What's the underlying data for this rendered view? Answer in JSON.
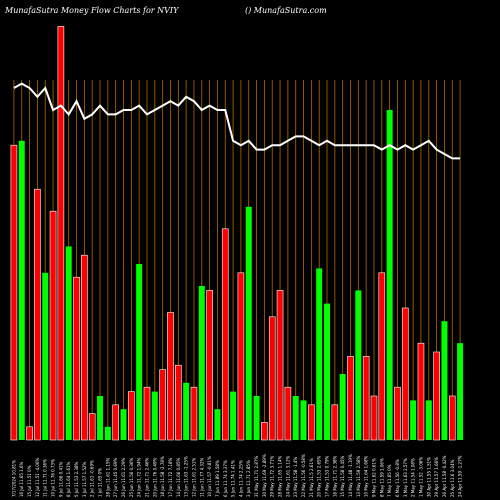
{
  "header": {
    "title_left": "MunafaSutra  Money Flow  Charts for NVIY",
    "title_right": "() MunafaSutra.com"
  },
  "chart_data": {
    "type": "bar",
    "title": "MunafaSutra  Money Flow  Charts for NVIY",
    "ylim": [
      0,
      100
    ],
    "colors": {
      "up": "#00ff00",
      "down": "#ff0000",
      "line": "#ffffff",
      "grid": "#ff9900",
      "background": "#000000"
    },
    "categories": [
      "7/17/2024 10.81%",
      "16 Jul 11.65 1.6%",
      "15 Jul 11.51 0%",
      "12 Jul 11.51 -4.06%",
      "11 Jul 11.71 0.36%",
      "10 Jul 11.76 0.73%",
      "9 Jul 11.66 0.41%",
      "8 Jul 11.64 1.61%",
      "5 Jul 11.53 2.38%",
      "3 Jul 11.57 1.52%",
      "2 Jul 11.61 -0.69%",
      "1 Jul 11.65 0%",
      "28 Jun 11.61 1.15%",
      "27 Jun 11.45 0.69%",
      "26 Jun 11.61 2.29%",
      "25 Jun 11.56 0.36%",
      "24 Jun 11.72 1.94%",
      "21 Jun 11.71 2.46%",
      "20 Jun 11.76 0.49%",
      "18 Jun 11.58 -2.78%",
      "17 Jun 11.72 7.18%",
      "14 Jun 11.66 0.85%",
      "13 Jun 11.63 -1.25%",
      "12 Jun 11.61 2.51%",
      "11 Jun 11.77 4.32%",
      "10 Jun 11.57 -0.81%",
      "7 Jun 11.89 1.58%",
      "6 Jun 11.74 3.37%",
      "5 Jun 11.74 1.41%",
      "4 Jun 11.74 2.25%",
      "3 Jun 11.71 2.85%",
      "31 May 11.71 2.87%",
      "30 May 11.69 -2.89%",
      "29 May 11.72 3.71%",
      "28 May 11.65 1.14%",
      "24 May 11.61 3.12%",
      "23 May 11.58 -1.4%",
      "22 May 11.56 -0.58%",
      "21 May 11.5 2.61%",
      "20 May 11.53 2.65%",
      "17 May 11.53 0.79%",
      "16 May 11.71 2.38%",
      "15 May 11.58 0.45%",
      "14 May 11.48 -1.19%",
      "13 May 11.59 2.58%",
      "10 May 11.64 1.68%",
      "9 May 11.62 0.61%",
      "8 May 11.59 1.06%",
      "7 May 11.65 0%",
      "6 May 11.56 -0.8%",
      "3 May 11.63 2.57%",
      "2 May 11.54 1.08%",
      "1 May 11.52 -3.06%",
      "30 Apr 11.55 1.51%",
      "29 Apr 11.57 1.66%",
      "26 Apr 11.58 -0.42%",
      "25 Apr 11.6 3.04%",
      "24 Apr 11.59 -1.27%"
    ],
    "bar_colors": [
      "red",
      "green",
      "red",
      "red",
      "green",
      "red",
      "red",
      "green",
      "red",
      "red",
      "red",
      "green",
      "green",
      "red",
      "green",
      "red",
      "green",
      "red",
      "green",
      "red",
      "red",
      "red",
      "green",
      "red",
      "green",
      "red",
      "green",
      "red",
      "green",
      "red",
      "green",
      "green",
      "red",
      "red",
      "red",
      "red",
      "green",
      "green",
      "red",
      "green",
      "green",
      "red",
      "green",
      "red",
      "green",
      "red",
      "red",
      "red",
      "green",
      "red",
      "red",
      "green",
      "red",
      "green",
      "red",
      "green",
      "red",
      "green"
    ],
    "series": [
      {
        "values": [
          67,
          68,
          3,
          57,
          38,
          52,
          94,
          44,
          37,
          42,
          6,
          10,
          3,
          8,
          7,
          11,
          40,
          12,
          11,
          16,
          29,
          17,
          13,
          12,
          35,
          34,
          7,
          48,
          11,
          38,
          53,
          10,
          4,
          28,
          34,
          12,
          10,
          9,
          8,
          39,
          31,
          8,
          15,
          19,
          34,
          19,
          10,
          38,
          75,
          12,
          30,
          9,
          22,
          9,
          20,
          27,
          10,
          22
        ]
      },
      {
        "values": [
          80,
          81,
          80,
          78,
          80,
          75,
          76,
          74,
          77,
          73,
          74,
          76,
          74,
          74,
          75,
          75,
          76,
          74,
          75,
          76,
          77,
          76,
          78,
          77,
          75,
          76,
          75,
          75,
          68,
          67,
          68,
          66,
          66,
          67,
          67,
          68,
          69,
          69,
          68,
          67,
          68,
          67,
          67,
          67,
          67,
          67,
          67,
          66,
          67,
          66,
          67,
          66,
          67,
          68,
          66,
          65,
          64,
          64
        ]
      }
    ],
    "grid": true
  }
}
